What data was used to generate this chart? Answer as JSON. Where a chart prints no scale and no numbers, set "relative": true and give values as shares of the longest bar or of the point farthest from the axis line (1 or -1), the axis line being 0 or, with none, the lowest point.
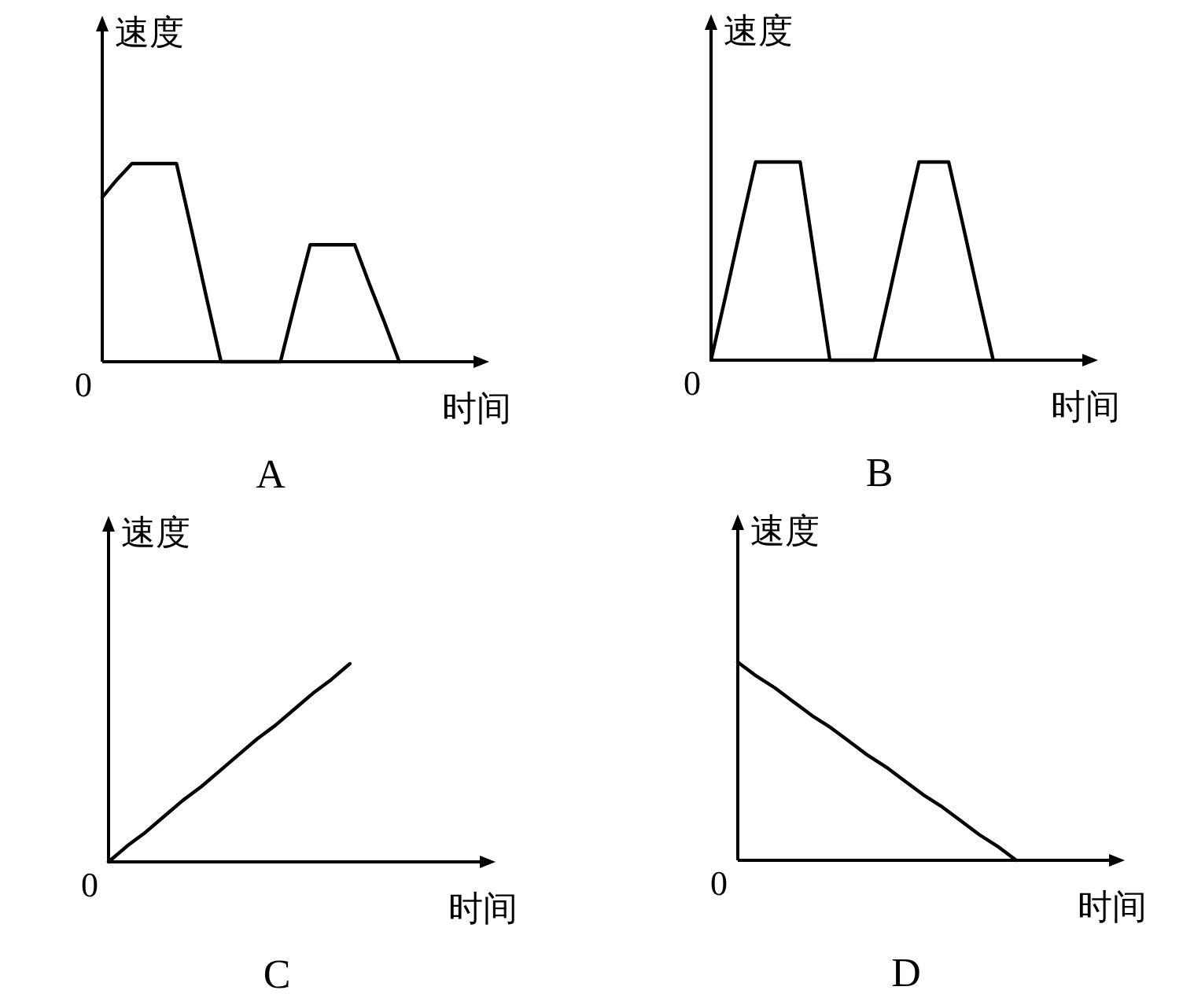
{
  "chart_data": [
    {
      "type": "line",
      "relative": true,
      "title": "A",
      "xlabel": "时间",
      "ylabel": "速度",
      "annotations": [
        "0"
      ],
      "categories": [
        null,
        null,
        null,
        null,
        null,
        null,
        null,
        null,
        null,
        null,
        null,
        null,
        null,
        null,
        null,
        null,
        null,
        null,
        null,
        null,
        null,
        null,
        null,
        null,
        null
      ],
      "series": [
        {
          "color": "#000000",
          "values": [
            0.83,
            0.92,
            1,
            1,
            1,
            1,
            0.67,
            0.33,
            0,
            0,
            0,
            0,
            0,
            0.3,
            0.59,
            0.59,
            0.59,
            0.59,
            0.39,
            0.2,
            0,
            null,
            null,
            null,
            null
          ]
        }
      ]
    },
    {
      "type": "line",
      "relative": true,
      "title": "B",
      "xlabel": "时间",
      "ylabel": "速度",
      "annotations": [
        "0"
      ],
      "categories": [
        null,
        null,
        null,
        null,
        null,
        null,
        null,
        null,
        null,
        null,
        null,
        null,
        null,
        null,
        null,
        null,
        null,
        null,
        null,
        null,
        null,
        null,
        null,
        null,
        null
      ],
      "series": [
        {
          "color": "#000000",
          "values": [
            0,
            0.33,
            0.67,
            1,
            1,
            1,
            1,
            0.5,
            0,
            0,
            0,
            0,
            0.33,
            0.67,
            1,
            1,
            1,
            0.67,
            0.33,
            0,
            null,
            null,
            null,
            null,
            null
          ]
        }
      ]
    },
    {
      "type": "line",
      "relative": true,
      "title": "C",
      "xlabel": "时间",
      "ylabel": "速度",
      "annotations": [
        "0"
      ],
      "categories": [
        null,
        null,
        null,
        null,
        null,
        null,
        null,
        null,
        null,
        null,
        null,
        null,
        null,
        null,
        null,
        null,
        null,
        null,
        null,
        null
      ],
      "series": [
        {
          "color": "#000000",
          "values": [
            0,
            0.08,
            0.15,
            0.23,
            0.31,
            0.38,
            0.46,
            0.54,
            0.62,
            0.69,
            0.77,
            0.85,
            0.92,
            1,
            null,
            null,
            null,
            null,
            null,
            null
          ]
        }
      ]
    },
    {
      "type": "line",
      "relative": true,
      "title": "D",
      "xlabel": "时间",
      "ylabel": "速度",
      "annotations": [
        "0"
      ],
      "categories": [
        null,
        null,
        null,
        null,
        null,
        null,
        null,
        null,
        null,
        null,
        null,
        null,
        null,
        null,
        null,
        null,
        null,
        null,
        null,
        null
      ],
      "series": [
        {
          "color": "#000000",
          "values": [
            1,
            0.93,
            0.87,
            0.8,
            0.73,
            0.67,
            0.6,
            0.53,
            0.47,
            0.4,
            0.33,
            0.27,
            0.2,
            0.13,
            0.07,
            0,
            null,
            null,
            null,
            null
          ]
        }
      ]
    }
  ]
}
